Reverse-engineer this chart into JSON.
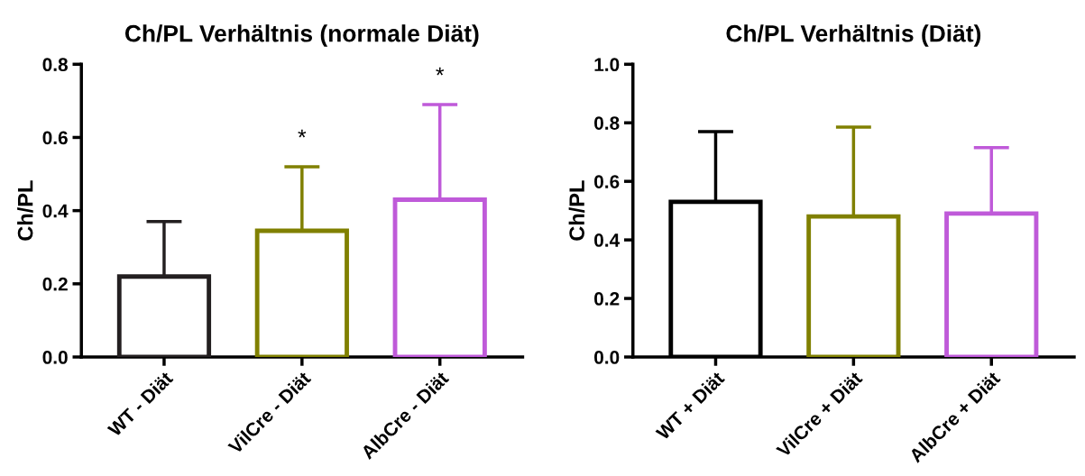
{
  "chart_data": [
    {
      "type": "bar",
      "title": "Ch/PL Verhältnis (normale Diät)",
      "ylabel": "Ch/PL",
      "categories": [
        "WT - Diät",
        "VilCre - Diät",
        "AlbCre - Diät"
      ],
      "values": [
        0.22,
        0.345,
        0.43
      ],
      "errors": [
        [
          0.22,
          0.37
        ],
        [
          0.345,
          0.52
        ],
        [
          0.43,
          0.69
        ]
      ],
      "colors": [
        "#231f20",
        "#808000",
        "#bf5ad9"
      ],
      "ylim": [
        0,
        0.8
      ],
      "yticks": [
        {
          "value": 0,
          "label": "0.0"
        },
        {
          "value": 0.2,
          "label": "0.2"
        },
        {
          "value": 0.4,
          "label": "0.4"
        },
        {
          "value": 0.6,
          "label": "0.6"
        },
        {
          "value": 0.8,
          "label": "0.8"
        }
      ],
      "annotations": [
        {
          "text": "*",
          "x": "VilCre - Diät",
          "y": 0.52
        },
        {
          "text": "*",
          "x": "AlbCre - Diät",
          "y": 0.69
        }
      ]
    },
    {
      "type": "bar",
      "title": "Ch/PL Verhältnis (Diät)",
      "ylabel": "Ch/PL",
      "categories": [
        "WT + Diät",
        "VilCre + Diät",
        "AlbCre + Diät"
      ],
      "values": [
        0.53,
        0.48,
        0.49
      ],
      "errors": [
        [
          0.53,
          0.77
        ],
        [
          0.48,
          0.785
        ],
        [
          0.49,
          0.715
        ]
      ],
      "colors": [
        "#000000",
        "#808000",
        "#bf5ad9"
      ],
      "ylim": [
        0,
        1.0
      ],
      "yticks": [
        {
          "value": 0,
          "label": "0.0"
        },
        {
          "value": 0.2,
          "label": "0.2"
        },
        {
          "value": 0.4,
          "label": "0.4"
        },
        {
          "value": 0.6,
          "label": "0.6"
        },
        {
          "value": 0.8,
          "label": "0.8"
        },
        {
          "value": 1.0,
          "label": "1.0"
        }
      ]
    }
  ]
}
